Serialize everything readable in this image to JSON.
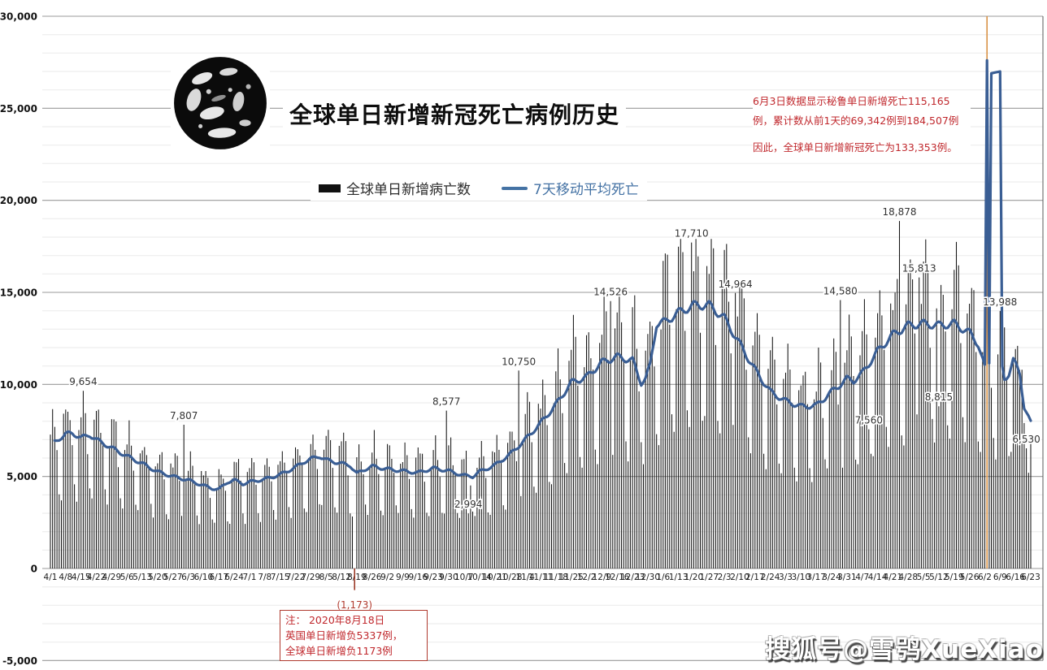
{
  "title": "全球单日新增新冠死亡病例历史",
  "legend": {
    "bars_label": "全球单日新增病亡数",
    "ma_label": "7天移动平均死亡"
  },
  "annotation_right": {
    "line1": "6月3日数据显示秘鲁单日新增死亡115,165",
    "line2": "例，累计数从前1天的69,342例到184,507例",
    "line3": "因此，全球单日新增新冠死亡为133,353例。"
  },
  "note_box": {
    "lines": [
      "注： 2020年8月18日",
      "英国单日新增负5337例，",
      "全球单日新增负1173例"
    ]
  },
  "watermark": "搜狐号@雪鸮XueXiao",
  "colors": {
    "bar": "#141414",
    "ma_line": "#3a5e94",
    "spike_bar": "#d99246",
    "negative": "#9c3a28",
    "annotation_red": "#c0282d",
    "grid_minor": "#eaeaea",
    "grid_major": "#9a9a9a",
    "plot_border": "#5a5a5a",
    "legend_ma": "#4472a4"
  },
  "chart_data": {
    "type": "bar+line",
    "title": "全球单日新增新冠死亡病例历史",
    "ylabel": "",
    "xlabel": "",
    "ylim": [
      -5000,
      30000
    ],
    "grid": true,
    "legend_position": "top-center",
    "days_total": 449,
    "y_tick_labels": [
      "-5,000",
      "0",
      "5,000",
      "10,000",
      "15,000",
      "20,000",
      "25,000",
      "30,000"
    ],
    "x_tick_labels": [
      "4/1",
      "4/8",
      "4/15",
      "4/22",
      "4/29",
      "5/6",
      "5/13",
      "5/20",
      "5/27",
      "6/3",
      "6/10",
      "6/17",
      "6/24",
      "7/1",
      "7/8",
      "7/15",
      "7/22",
      "7/29",
      "8/5",
      "8/12",
      "8/19",
      "8/26",
      "9/2",
      "9/9",
      "9/16",
      "9/23",
      "9/30",
      "10/7",
      "10/14",
      "10/21",
      "10/28",
      "11/4",
      "11/11",
      "11/18",
      "11/25",
      "12/2",
      "12/9",
      "12/16",
      "12/23",
      "12/30",
      "1/6",
      "1/13",
      "1/20",
      "1/27",
      "2/3",
      "2/10",
      "2/17",
      "2/24",
      "3/3",
      "3/10",
      "3/17",
      "3/24",
      "3/31",
      "4/7",
      "4/14",
      "4/21",
      "4/28",
      "5/5",
      "5/12",
      "5/19",
      "5/26",
      "6/2",
      "6/9",
      "6/16",
      "6/23"
    ],
    "series": [
      {
        "name": "全球单日新增病亡数",
        "type": "bar",
        "color": "#141414"
      },
      {
        "name": "7天移动平均死亡",
        "type": "line",
        "color": "#3a5e94"
      }
    ],
    "ma_line_points": [
      [
        0,
        6700
      ],
      [
        4,
        7050
      ],
      [
        7,
        7300
      ],
      [
        10,
        7350
      ],
      [
        14,
        7100
      ],
      [
        18,
        7250
      ],
      [
        21,
        7000
      ],
      [
        28,
        6550
      ],
      [
        35,
        6100
      ],
      [
        42,
        5700
      ],
      [
        49,
        5250
      ],
      [
        56,
        5000
      ],
      [
        63,
        4800
      ],
      [
        70,
        4500
      ],
      [
        74,
        4350
      ],
      [
        77,
        4300
      ],
      [
        81,
        4700
      ],
      [
        84,
        4800
      ],
      [
        88,
        4600
      ],
      [
        91,
        4700
      ],
      [
        98,
        4850
      ],
      [
        105,
        5100
      ],
      [
        112,
        5500
      ],
      [
        116,
        5800
      ],
      [
        119,
        5950
      ],
      [
        123,
        6100
      ],
      [
        126,
        5900
      ],
      [
        133,
        5700
      ],
      [
        137,
        5600
      ],
      [
        140,
        5150
      ],
      [
        144,
        5400
      ],
      [
        147,
        5550
      ],
      [
        154,
        5400
      ],
      [
        161,
        5300
      ],
      [
        168,
        5200
      ],
      [
        175,
        5450
      ],
      [
        182,
        5300
      ],
      [
        189,
        5050
      ],
      [
        193,
        5000
      ],
      [
        196,
        5250
      ],
      [
        203,
        5600
      ],
      [
        210,
        6200
      ],
      [
        217,
        7000
      ],
      [
        224,
        7900
      ],
      [
        231,
        8900
      ],
      [
        238,
        10100
      ],
      [
        245,
        10400
      ],
      [
        252,
        11200
      ],
      [
        259,
        11500
      ],
      [
        266,
        11300
      ],
      [
        270,
        10100
      ],
      [
        272,
        10300
      ],
      [
        274,
        11000
      ],
      [
        277,
        13300
      ],
      [
        281,
        13400
      ],
      [
        287,
        13900
      ],
      [
        294,
        14300
      ],
      [
        301,
        14300
      ],
      [
        308,
        13600
      ],
      [
        315,
        12200
      ],
      [
        322,
        10800
      ],
      [
        329,
        9600
      ],
      [
        336,
        9100
      ],
      [
        343,
        8800
      ],
      [
        350,
        8850
      ],
      [
        357,
        9600
      ],
      [
        364,
        10300
      ],
      [
        367,
        10200
      ],
      [
        371,
        10600
      ],
      [
        378,
        11800
      ],
      [
        385,
        12700
      ],
      [
        392,
        13200
      ],
      [
        399,
        13300
      ],
      [
        406,
        13200
      ],
      [
        413,
        13300
      ],
      [
        420,
        12800
      ],
      [
        424,
        12200
      ],
      [
        427,
        10900
      ],
      [
        428,
        27600
      ],
      [
        429,
        11200
      ],
      [
        430,
        26900
      ],
      [
        434,
        27000
      ],
      [
        435,
        10900
      ],
      [
        436,
        10300
      ],
      [
        438,
        10600
      ],
      [
        440,
        11300
      ],
      [
        443,
        10600
      ],
      [
        445,
        8800
      ],
      [
        448,
        7900
      ]
    ],
    "bar_envelope_points": [
      [
        0,
        6700
      ],
      [
        7,
        7300
      ],
      [
        14,
        7100
      ],
      [
        21,
        7000
      ],
      [
        28,
        6550
      ],
      [
        35,
        6100
      ],
      [
        42,
        5700
      ],
      [
        49,
        5250
      ],
      [
        56,
        5000
      ],
      [
        63,
        4800
      ],
      [
        70,
        4500
      ],
      [
        77,
        4300
      ],
      [
        84,
        4800
      ],
      [
        91,
        4700
      ],
      [
        98,
        4850
      ],
      [
        105,
        5100
      ],
      [
        112,
        5500
      ],
      [
        119,
        5950
      ],
      [
        126,
        5900
      ],
      [
        133,
        5700
      ],
      [
        140,
        5200
      ],
      [
        147,
        5550
      ],
      [
        154,
        5400
      ],
      [
        161,
        5300
      ],
      [
        168,
        5200
      ],
      [
        175,
        5450
      ],
      [
        182,
        5300
      ],
      [
        189,
        5050
      ],
      [
        196,
        5250
      ],
      [
        203,
        5600
      ],
      [
        210,
        6200
      ],
      [
        217,
        7000
      ],
      [
        224,
        7900
      ],
      [
        231,
        8900
      ],
      [
        238,
        10100
      ],
      [
        245,
        10400
      ],
      [
        252,
        11200
      ],
      [
        259,
        11500
      ],
      [
        266,
        11300
      ],
      [
        273,
        10400
      ],
      [
        280,
        13500
      ],
      [
        287,
        13900
      ],
      [
        294,
        14300
      ],
      [
        301,
        14300
      ],
      [
        308,
        13600
      ],
      [
        315,
        12200
      ],
      [
        322,
        10800
      ],
      [
        329,
        9600
      ],
      [
        336,
        9100
      ],
      [
        343,
        8800
      ],
      [
        350,
        8850
      ],
      [
        357,
        9600
      ],
      [
        364,
        10300
      ],
      [
        371,
        10600
      ],
      [
        378,
        11800
      ],
      [
        385,
        12700
      ],
      [
        392,
        13200
      ],
      [
        399,
        13300
      ],
      [
        406,
        13200
      ],
      [
        413,
        13300
      ],
      [
        420,
        12800
      ],
      [
        428,
        11400
      ],
      [
        432,
        11000
      ],
      [
        436,
        10600
      ],
      [
        440,
        11000
      ],
      [
        444,
        9600
      ],
      [
        448,
        8200
      ]
    ],
    "weekly_pattern": [
      1.18,
      1.26,
      1.16,
      0.94,
      0.6,
      0.54,
      1.08
    ],
    "bar_overrides": {
      "15": 9654,
      "61": 7807,
      "139": -1173,
      "181": 8577,
      "191": 2994,
      "214": 10750,
      "256": 14526,
      "293": 17710,
      "313": 14964,
      "361": 14580,
      "374": 7560,
      "388": 18878,
      "397": 15813,
      "406": 8815,
      "428": 133353,
      "434": 13988,
      "444": 10800,
      "445": 7900,
      "446": 6530,
      "447": 5200,
      "448": 7100
    },
    "point_labels": [
      {
        "i": 15,
        "t": "9,654"
      },
      {
        "i": 61,
        "t": "7,807"
      },
      {
        "i": 181,
        "t": "8,577"
      },
      {
        "i": 191,
        "t": "2,994"
      },
      {
        "i": 214,
        "t": "10,750"
      },
      {
        "i": 256,
        "t": "14,526"
      },
      {
        "i": 293,
        "t": "17,710"
      },
      {
        "i": 313,
        "t": "14,964"
      },
      {
        "i": 361,
        "t": "14,580"
      },
      {
        "i": 374,
        "t": "7,560"
      },
      {
        "i": 388,
        "t": "18,878"
      },
      {
        "i": 397,
        "t": "15,813"
      },
      {
        "i": 406,
        "t": "8,815"
      },
      {
        "i": 434,
        "t": "13,988"
      },
      {
        "i": 446,
        "t": "6,530"
      }
    ],
    "spike": {
      "i": 428,
      "value": 133353,
      "date": "6/3"
    },
    "negative_day": {
      "i": 139,
      "value": -1173,
      "label": "(1,173)",
      "date": "8/18"
    }
  }
}
